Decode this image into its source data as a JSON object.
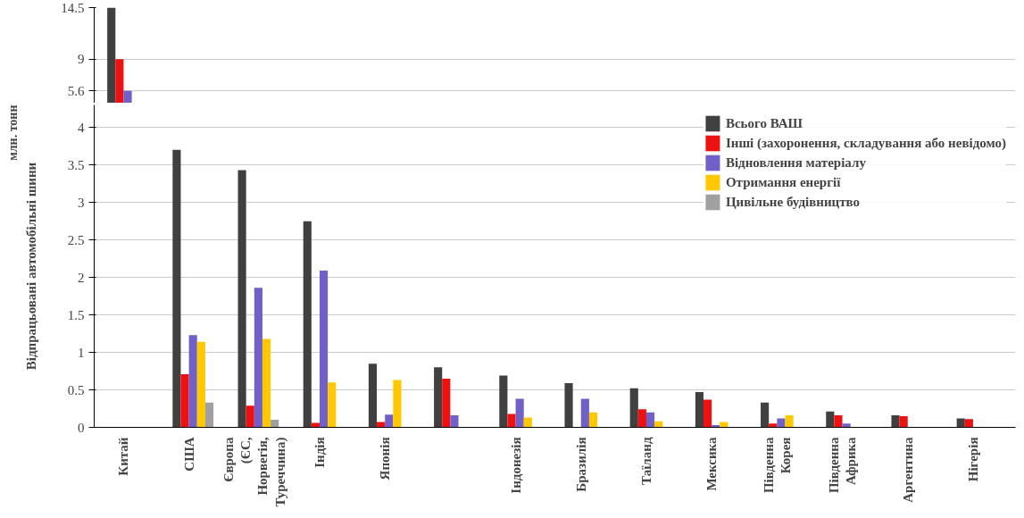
{
  "chart_data": [
    {
      "type": "bar",
      "categories": [
        null,
        null,
        null,
        null,
        null,
        null,
        null,
        null,
        null,
        null,
        null,
        null,
        null,
        null
      ],
      "series": [
        {
          "color": "#404040",
          "values": [
            14.5,
            null,
            null,
            null,
            null,
            null,
            null,
            null,
            null,
            null,
            null,
            null,
            null,
            null
          ]
        },
        {
          "color": "#ee1111",
          "values": [
            9,
            null,
            null,
            null,
            null,
            null,
            null,
            null,
            null,
            null,
            null,
            null,
            null,
            null
          ]
        },
        {
          "color": "#7060c8",
          "values": [
            5.6,
            null,
            null,
            null,
            null,
            null,
            null,
            null,
            null,
            null,
            null,
            null,
            null,
            null
          ]
        }
      ],
      "ylim": [
        4.3,
        14.5
      ],
      "yticks": [
        5.6,
        9,
        14.5
      ],
      "tick_labels": "y",
      "grid": "y"
    },
    {
      "type": "bar",
      "ylabel": "Відпрацьовані автомобільні шини",
      "annotations": [
        "млн. тонн"
      ],
      "categories": [
        "Китай",
        "США",
        "Європа (ЄС, Норвегія, Туреччина)",
        "Індія",
        "Японія",
        null,
        "Індонезія",
        "Бразилія",
        "Таїланд",
        "Мексика",
        "Південна Корея",
        "Південна Африка",
        "Аргентина",
        "Нігерія"
      ],
      "series": [
        {
          "name": "Всього ВАШ",
          "color": "#404040",
          "values": [
            null,
            3.7,
            3.43,
            2.75,
            0.85,
            0.8,
            0.69,
            0.59,
            0.52,
            0.47,
            0.33,
            0.21,
            0.16,
            0.12
          ]
        },
        {
          "name": "Інші (захоронення, складування або невідомо)",
          "color": "#ee1111",
          "values": [
            null,
            0.71,
            0.29,
            0.06,
            0.07,
            0.65,
            0.18,
            null,
            0.24,
            0.37,
            0.05,
            0.16,
            0.15,
            0.11
          ]
        },
        {
          "name": "Відновлення матеріалу",
          "color": "#7060c8",
          "values": [
            null,
            1.23,
            1.86,
            2.09,
            0.17,
            0.16,
            0.38,
            0.38,
            0.2,
            0.03,
            0.12,
            0.05,
            null,
            null
          ]
        },
        {
          "name": "Отримання енергії",
          "color": "#ffc800",
          "values": [
            null,
            1.14,
            1.18,
            0.6,
            0.63,
            null,
            0.13,
            0.2,
            0.08,
            0.07,
            0.16,
            null,
            null,
            null
          ]
        },
        {
          "name": "Цивільне будівництво",
          "color": "#a0a0a0",
          "values": [
            null,
            0.33,
            0.1,
            null,
            null,
            null,
            null,
            null,
            null,
            null,
            null,
            null,
            null,
            null
          ]
        }
      ],
      "ylim": [
        0,
        4.3
      ],
      "yticks": [
        0,
        0.5,
        1,
        1.5,
        2,
        2.5,
        3,
        3.5,
        4
      ],
      "grid": "y",
      "legend": "top right"
    }
  ]
}
